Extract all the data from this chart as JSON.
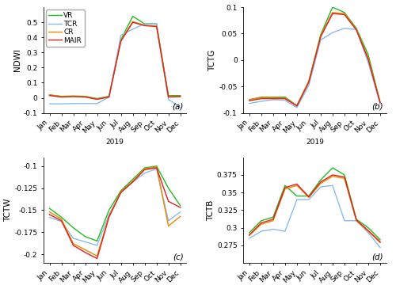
{
  "months": [
    "Jan",
    "Feb",
    "Mar",
    "Apr",
    "May",
    "Jun",
    "Jul",
    "Aug",
    "Sep",
    "Oct",
    "Nov",
    "Dec"
  ],
  "colors": {
    "VR": "#22bb22",
    "TCR": "#88bbee",
    "CR": "#ee8800",
    "MAIR": "#dd2222"
  },
  "linewidths": 1.0,
  "NDWI": {
    "VR": [
      0.02,
      0.01,
      0.012,
      0.01,
      -0.005,
      0.01,
      0.385,
      0.54,
      0.49,
      0.49,
      0.015,
      0.015
    ],
    "TCR": [
      -0.04,
      -0.04,
      -0.038,
      -0.038,
      -0.038,
      0.005,
      0.415,
      0.455,
      0.49,
      0.49,
      -0.01,
      -0.065
    ],
    "CR": [
      0.018,
      0.008,
      0.01,
      0.008,
      -0.008,
      0.008,
      0.378,
      0.505,
      0.48,
      0.475,
      0.008,
      0.01
    ],
    "MAIR": [
      0.015,
      0.005,
      0.008,
      0.005,
      -0.01,
      0.005,
      0.375,
      0.5,
      0.478,
      0.472,
      0.005,
      0.008
    ],
    "ylim": [
      -0.1,
      0.6
    ],
    "yticks": [
      -0.1,
      0.0,
      0.1,
      0.2,
      0.3,
      0.4,
      0.5
    ],
    "ylabel": "NDWI"
  },
  "TCTG": {
    "VR": [
      -0.075,
      -0.07,
      -0.07,
      -0.07,
      -0.086,
      -0.04,
      0.048,
      0.1,
      0.09,
      0.06,
      0.01,
      -0.08
    ],
    "TCR": [
      -0.082,
      -0.078,
      -0.075,
      -0.076,
      -0.09,
      -0.048,
      0.038,
      0.052,
      0.06,
      0.058,
      -0.005,
      -0.083
    ],
    "CR": [
      -0.075,
      -0.071,
      -0.071,
      -0.072,
      -0.086,
      -0.04,
      0.046,
      0.09,
      0.088,
      0.058,
      0.004,
      -0.08
    ],
    "MAIR": [
      -0.077,
      -0.073,
      -0.073,
      -0.073,
      -0.087,
      -0.042,
      0.044,
      0.088,
      0.086,
      0.057,
      0.001,
      -0.081
    ],
    "ylim": [
      -0.1,
      0.1
    ],
    "yticks": [
      -0.1,
      -0.05,
      0.0,
      0.05,
      0.1
    ],
    "ylabel": "TCTG"
  },
  "TCTW": {
    "VR": [
      -0.148,
      -0.158,
      -0.17,
      -0.18,
      -0.185,
      -0.15,
      -0.128,
      -0.115,
      -0.102,
      -0.1,
      -0.125,
      -0.145
    ],
    "TCR": [
      -0.158,
      -0.163,
      -0.182,
      -0.186,
      -0.19,
      -0.155,
      -0.13,
      -0.118,
      -0.108,
      -0.103,
      -0.162,
      -0.152
    ],
    "CR": [
      -0.152,
      -0.16,
      -0.188,
      -0.195,
      -0.202,
      -0.157,
      -0.129,
      -0.117,
      -0.103,
      -0.101,
      -0.168,
      -0.157
    ],
    "MAIR": [
      -0.155,
      -0.162,
      -0.19,
      -0.198,
      -0.205,
      -0.158,
      -0.13,
      -0.118,
      -0.104,
      -0.102,
      -0.14,
      -0.147
    ],
    "ylim": [
      -0.21,
      -0.09
    ],
    "yticks": [
      -0.2,
      -0.175,
      -0.15,
      -0.125,
      -0.1
    ],
    "ylabel": "TCTW"
  },
  "TCTB": {
    "VR": [
      0.293,
      0.31,
      0.315,
      0.36,
      0.345,
      0.345,
      0.368,
      0.385,
      0.375,
      0.312,
      0.3,
      0.283
    ],
    "TCR": [
      0.285,
      0.295,
      0.298,
      0.295,
      0.34,
      0.34,
      0.358,
      0.36,
      0.31,
      0.31,
      0.293,
      0.272
    ],
    "CR": [
      0.289,
      0.305,
      0.31,
      0.355,
      0.36,
      0.343,
      0.363,
      0.373,
      0.37,
      0.31,
      0.295,
      0.279
    ],
    "MAIR": [
      0.29,
      0.307,
      0.312,
      0.357,
      0.362,
      0.344,
      0.365,
      0.375,
      0.372,
      0.311,
      0.296,
      0.28
    ],
    "ylim": [
      0.25,
      0.4
    ],
    "yticks": [
      0.275,
      0.3,
      0.325,
      0.35,
      0.375
    ],
    "ylabel": "TCTB"
  },
  "legend_labels": [
    "VR",
    "TCR",
    "CR",
    "MAIR"
  ],
  "subplot_labels": [
    "(a)",
    "(b)",
    "(c)",
    "(d)"
  ],
  "xlabel": "2019",
  "tick_fontsize": 6.5,
  "label_fontsize": 7.5,
  "legend_fontsize": 6.5
}
